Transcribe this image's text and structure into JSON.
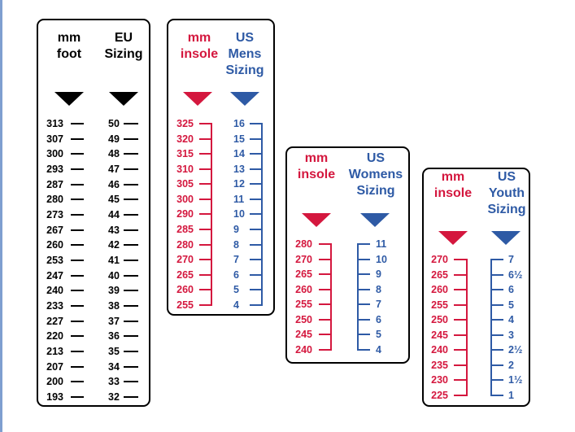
{
  "colors": {
    "black": "#000000",
    "red": "#d4173e",
    "blue": "#2e5aa5"
  },
  "panels": [
    {
      "id": "foot-eu",
      "left_header": "mm\nfoot",
      "right_header": "EU\nSizing",
      "left_color": "black",
      "right_color": "black",
      "left_values": [
        "313",
        "307",
        "300",
        "293",
        "287",
        "280",
        "273",
        "267",
        "260",
        "253",
        "247",
        "240",
        "233",
        "227",
        "220",
        "213",
        "207",
        "200",
        "193"
      ],
      "right_values": [
        "50",
        "49",
        "48",
        "47",
        "46",
        "45",
        "44",
        "43",
        "42",
        "41",
        "40",
        "39",
        "38",
        "37",
        "36",
        "35",
        "34",
        "33",
        "32"
      ]
    },
    {
      "id": "insole-us-mens",
      "left_header": "mm\ninsole",
      "right_header": "US\nMens\nSizing",
      "left_color": "red",
      "right_color": "blue",
      "left_values": [
        "325",
        "320",
        "315",
        "310",
        "305",
        "300",
        "290",
        "285",
        "280",
        "270",
        "265",
        "260",
        "255"
      ],
      "right_values": [
        "16",
        "15",
        "14",
        "13",
        "12",
        "11",
        "10",
        "9",
        "8",
        "7",
        "6",
        "5",
        "4"
      ]
    },
    {
      "id": "insole-us-womens",
      "left_header": "mm\ninsole",
      "right_header": "US\nWomens\nSizing",
      "left_color": "red",
      "right_color": "blue",
      "left_values": [
        "280",
        "270",
        "265",
        "260",
        "255",
        "250",
        "245",
        "240"
      ],
      "right_values": [
        "11",
        "10",
        "9",
        "8",
        "7",
        "6",
        "5",
        "4"
      ]
    },
    {
      "id": "insole-us-youth",
      "left_header": "mm\ninsole",
      "right_header": "US\nYouth\nSizing",
      "left_color": "red",
      "right_color": "blue",
      "left_values": [
        "270",
        "265",
        "260",
        "255",
        "250",
        "245",
        "240",
        "235",
        "230",
        "225"
      ],
      "right_values": [
        "7",
        "6½",
        "6",
        "5",
        "4",
        "3",
        "2½",
        "2",
        "1½",
        "1"
      ]
    }
  ]
}
